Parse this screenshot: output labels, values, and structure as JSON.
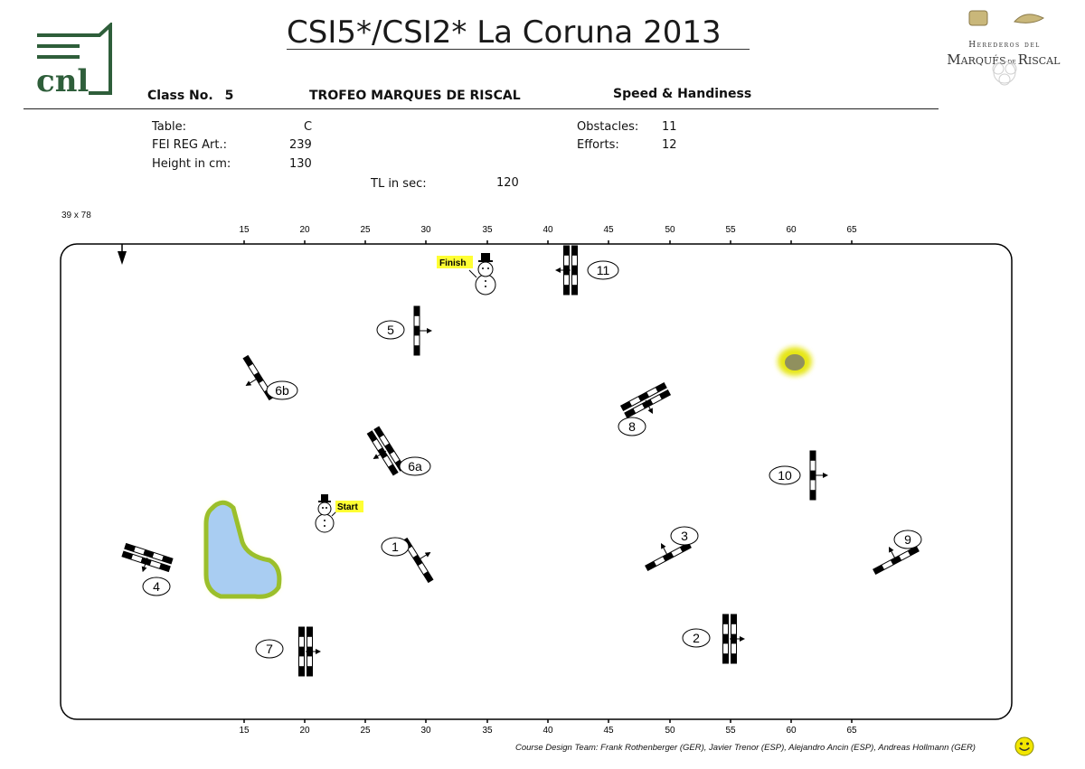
{
  "event_title": "CSI5*/CSI2* La Coruna 2013",
  "class": {
    "label": "Class No.",
    "number": "5",
    "name": "TROFEO MARQUES DE RISCAL",
    "type": "Speed & Handiness"
  },
  "details": {
    "table_label": "Table:",
    "table_value": "C",
    "fei_label": "FEI REG Art.:",
    "fei_value": "239",
    "height_label": "Height in cm:",
    "height_value": "130",
    "obstacles_label": "Obstacles:",
    "obstacles_value": "11",
    "efforts_label": "Efforts:",
    "efforts_value": "12",
    "tl_label": "TL in sec:",
    "tl_value": "120"
  },
  "arena_size": "39 x 78",
  "scale_ticks": [
    "15",
    "20",
    "25",
    "30",
    "35",
    "40",
    "45",
    "50",
    "55",
    "60",
    "65"
  ],
  "sponsor": {
    "line1": "Herederos del",
    "line2a": "Marqués",
    "line2b": "de",
    "line2c": "Riscal"
  },
  "logo_text": "cnl",
  "markers": {
    "start": "Start",
    "finish": "Finish"
  },
  "obstacles": [
    {
      "label": "1"
    },
    {
      "label": "2"
    },
    {
      "label": "3"
    },
    {
      "label": "4"
    },
    {
      "label": "5"
    },
    {
      "label": "6a"
    },
    {
      "label": "6b"
    },
    {
      "label": "7"
    },
    {
      "label": "8"
    },
    {
      "label": "9"
    },
    {
      "label": "10"
    },
    {
      "label": "11"
    }
  ],
  "credits": "Course Design Team:   Frank Rothenberger (GER), Javier Trenor (ESP), Alejandro Ancin (ESP), Andreas Hollmann (GER)",
  "colors": {
    "water_fill": "#a9cdf2",
    "water_border": "#9bbf2b",
    "highlight": "#ffff33",
    "ink": "#000000",
    "logo_green": "#2e5e3a"
  }
}
